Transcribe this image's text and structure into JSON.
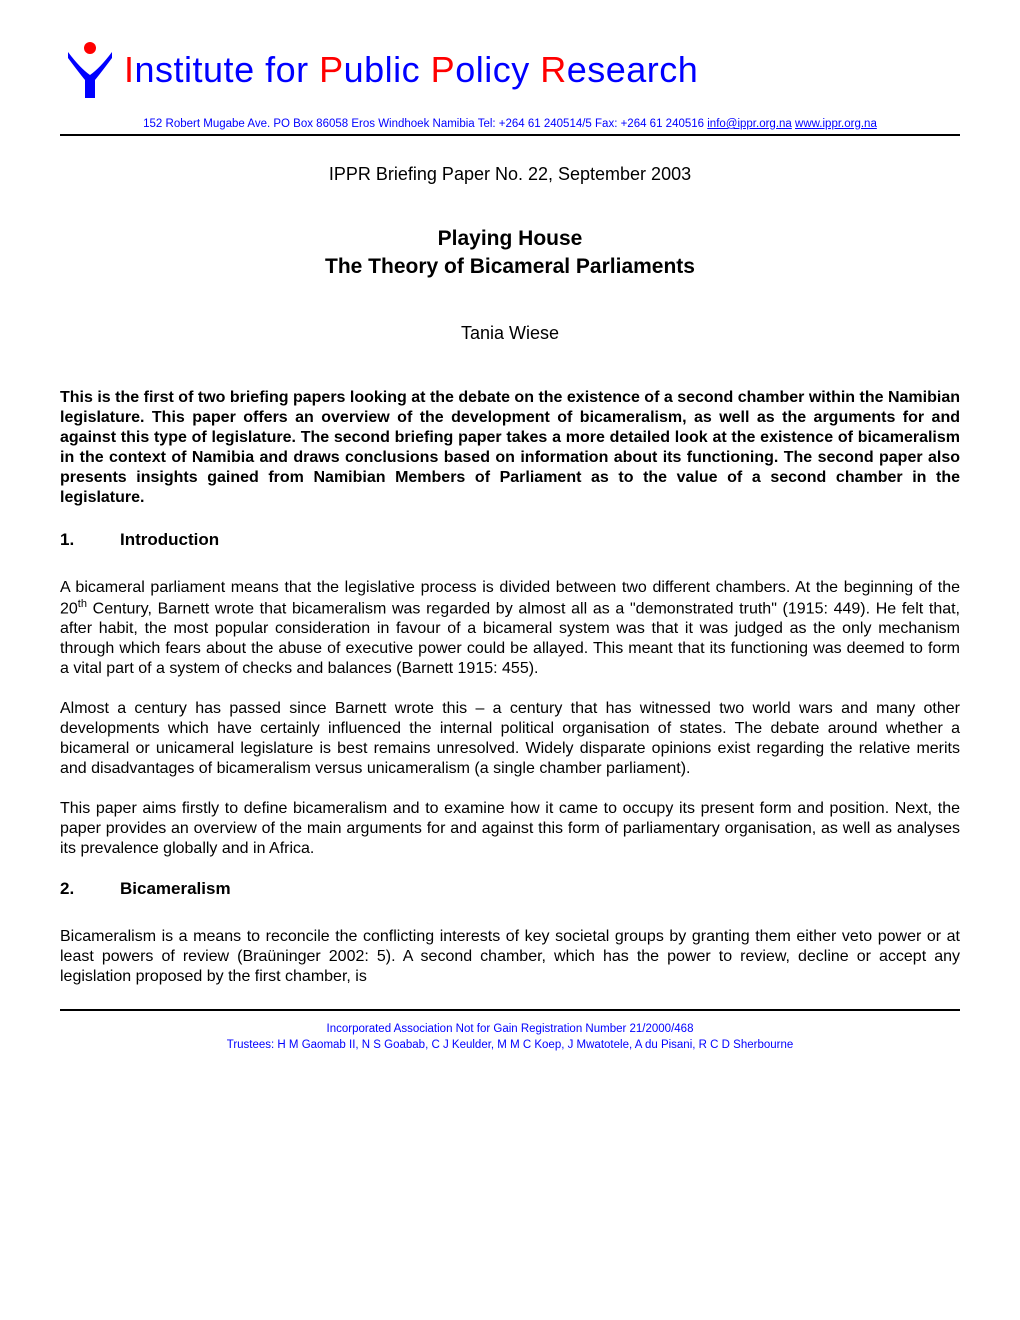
{
  "header": {
    "logo_colors": {
      "cross": "#0000ff",
      "dot": "#ff0000"
    },
    "org_title_parts": [
      {
        "text": "I",
        "class": "red"
      },
      {
        "text": "nstitute for ",
        "class": "blue"
      },
      {
        "text": "P",
        "class": "red"
      },
      {
        "text": "ublic ",
        "class": "blue"
      },
      {
        "text": "P",
        "class": "red"
      },
      {
        "text": "olicy ",
        "class": "blue"
      },
      {
        "text": "R",
        "class": "red"
      },
      {
        "text": "esearch",
        "class": "blue"
      }
    ],
    "address_prefix": "152 Robert Mugabe Ave. PO Box 86058 Eros Windhoek Namibia Tel: +264 61 240514/5 Fax: +264 61 240516 ",
    "email": "info@ippr.org.na",
    "website": "www.ippr.org.na"
  },
  "paper_meta": "IPPR Briefing Paper No. 22, September 2003",
  "title_line1": "Playing House",
  "title_line2": "The Theory of Bicameral Parliaments",
  "author": "Tania Wiese",
  "abstract": "This is the first of two briefing papers looking at the debate on the existence of a second chamber within the Namibian legislature. This paper offers an overview of the development of bicameralism, as well as the arguments for and against this type of legislature. The second briefing paper takes a more detailed look at the existence of bicameralism in the context of Namibia and draws conclusions based on information about its functioning. The second paper also presents insights gained from Namibian Members of Parliament as to the value of a second chamber in the legislature.",
  "sections": [
    {
      "number": "1.",
      "heading": "Introduction",
      "paragraphs": [
        "A bicameral parliament means that the legislative process is divided between two different chambers. At the beginning of the 20<sup>th</sup> Century, Barnett wrote that bicameralism was regarded by almost all as a \"demonstrated truth\" (1915: 449). He felt that, after habit, the most popular consideration in favour of a bicameral system was that it was judged as the only mechanism through which fears about the abuse of executive power could be allayed. This meant that its functioning was deemed to form a vital part of a system of checks and balances (Barnett 1915: 455).",
        "Almost a century has passed since Barnett wrote this – a century that has witnessed two world wars and many other developments which have certainly influenced the internal political organisation of states. The debate around whether a bicameral or unicameral legislature is best remains unresolved. Widely disparate opinions exist regarding the relative merits and disadvantages of bicameralism versus unicameralism (a single chamber parliament).",
        "This paper aims firstly to define bicameralism and to examine how it came to occupy its present form and position. Next, the paper provides an overview of the main arguments for and against this form of parliamentary organisation, as well as analyses its prevalence globally and in Africa."
      ]
    },
    {
      "number": "2.",
      "heading": "Bicameralism",
      "paragraphs": [
        "Bicameralism is a means to reconcile the conflicting interests of key societal groups by granting them either veto power or at least powers of review (Braüninger 2002: 5). A second chamber, which has the power to review, decline or accept any legislation proposed by the first chamber, is"
      ]
    }
  ],
  "footer": {
    "line1": "Incorporated Association Not for Gain Registration Number 21/2000/468",
    "line2": "Trustees: H M Gaomab II, N S Goabab, C J Keulder, M M C Koep, J Mwatotele, A du Pisani, R C D Sherbourne"
  }
}
